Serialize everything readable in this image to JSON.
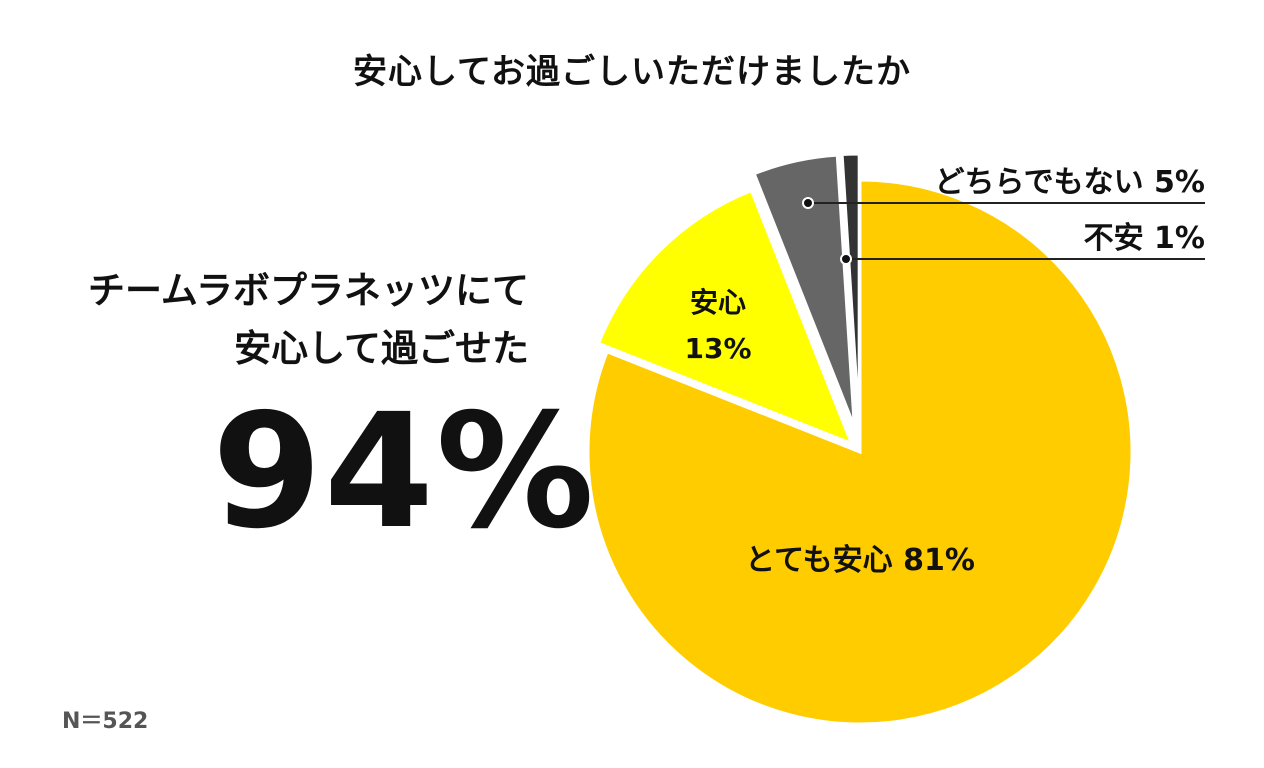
{
  "header": {
    "title": "安心してお過ごしいただけましたか"
  },
  "summary": {
    "line1": "チームラボプラネッツにて",
    "line2": "安心して過ごせた",
    "value": "94%"
  },
  "footer": {
    "sample_size": "N＝522"
  },
  "chart_data": {
    "type": "pie",
    "title": "安心してお過ごしいただけましたか",
    "slices": [
      {
        "label": "とても安心",
        "value": 81,
        "value_label": "81%",
        "color": "#FFCC00"
      },
      {
        "label": "安心",
        "value": 13,
        "value_label": "13%",
        "color": "#FFFF00"
      },
      {
        "label": "どちらでもない",
        "value": 5,
        "value_label": "5%",
        "color": "#666666"
      },
      {
        "label": "不安",
        "value": 1,
        "value_label": "1%",
        "color": "#333333"
      }
    ],
    "start": "12 o'clock",
    "direction": "clockwise",
    "exploded": true,
    "legend": "none"
  }
}
